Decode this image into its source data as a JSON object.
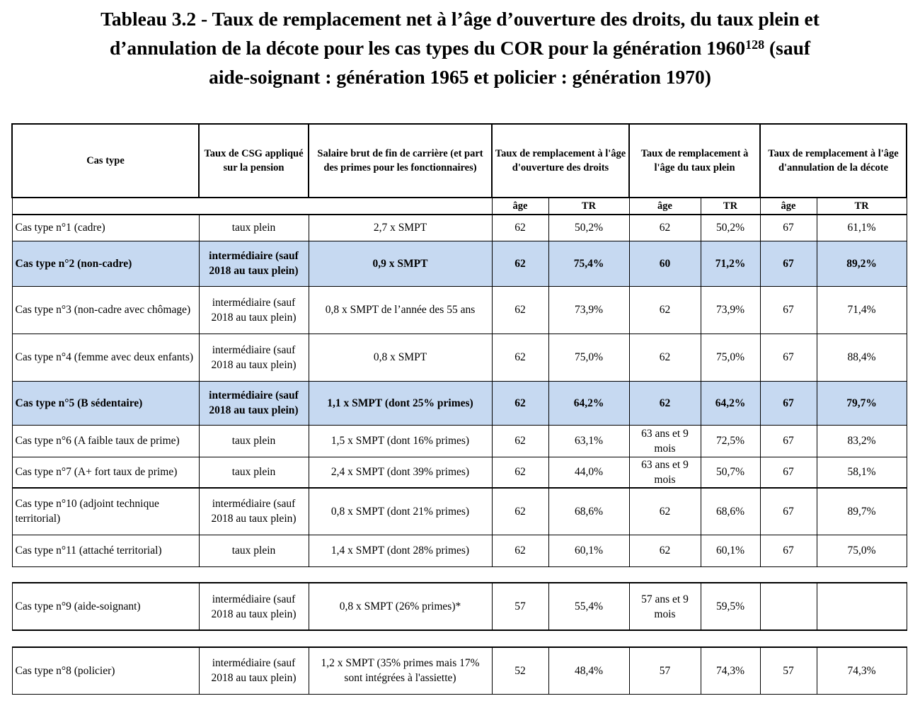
{
  "title": {
    "line1": "Tableau 3.2 - Taux de remplacement net à l’âge d’ouverture des droits, du taux plein et",
    "line2a": "d’annulation de la décote pour les cas types du COR pour la génération 1960",
    "footnote_ref": "128",
    "line2b": " (sauf",
    "line3": "aide-soignant : génération 1965 et policier : génération 1970)"
  },
  "headers": {
    "cas_type": "Cas type",
    "csg": "Taux de CSG appliqué sur la pension",
    "salaire": "Salaire brut de fin de carrière (et part des primes pour les fonctionnaires)",
    "tr_ouverture": "Taux de remplacement à l'âge d'ouverture des droits",
    "tr_taux_plein": "Taux de remplacement à l'âge du taux plein",
    "tr_annulation": "Taux de remplacement à l'âge d'annulation de la décote",
    "age": "âge",
    "tr": "TR"
  },
  "rows": [
    {
      "cas": "Cas type n°1 (cadre)",
      "csg": "taux plein",
      "salaire": "2,7 x SMPT",
      "age1": "62",
      "tr1": "50,2%",
      "age2": "62",
      "tr2": "50,2%",
      "age3": "67",
      "tr3": "61,1%"
    },
    {
      "cas": "Cas type n°2 (non-cadre)",
      "csg": "intermédiaire (sauf 2018 au taux plein)",
      "salaire": "0,9 x SMPT",
      "age1": "62",
      "tr1": "75,4%",
      "age2": "60",
      "tr2": "71,2%",
      "age3": "67",
      "tr3": "89,2%"
    },
    {
      "cas": "Cas type n°3 (non-cadre avec chômage)",
      "csg": "intermédiaire (sauf 2018 au taux plein)",
      "salaire": "0,8 x SMPT de l’année des 55 ans",
      "age1": "62",
      "tr1": "73,9%",
      "age2": "62",
      "tr2": "73,9%",
      "age3": "67",
      "tr3": "71,4%"
    },
    {
      "cas": "Cas type n°4 (femme avec deux enfants)",
      "csg": "intermédiaire (sauf 2018 au taux plein)",
      "salaire": "0,8 x SMPT",
      "age1": "62",
      "tr1": "75,0%",
      "age2": "62",
      "tr2": "75,0%",
      "age3": "67",
      "tr3": "88,4%"
    },
    {
      "cas": "Cas type n°5 (B sédentaire)",
      "csg": "intermédiaire (sauf 2018 au taux plein)",
      "salaire": "1,1 x SMPT (dont 25% primes)",
      "age1": "62",
      "tr1": "64,2%",
      "age2": "62",
      "tr2": "64,2%",
      "age3": "67",
      "tr3": "79,7%"
    },
    {
      "cas": "Cas type n°6 (A faible taux de prime)",
      "csg": "taux plein",
      "salaire": "1,5 x SMPT (dont 16% primes)",
      "age1": "62",
      "tr1": "63,1%",
      "age2": "63 ans et 9 mois",
      "tr2": "72,5%",
      "age3": "67",
      "tr3": "83,2%"
    },
    {
      "cas": "Cas type n°7 (A+ fort taux de prime)",
      "csg": "taux plein",
      "salaire": "2,4 x SMPT (dont 39% primes)",
      "age1": "62",
      "tr1": "44,0%",
      "age2": "63 ans et 9 mois",
      "tr2": "50,7%",
      "age3": "67",
      "tr3": "58,1%"
    },
    {
      "cas": "Cas type n°10 (adjoint technique territorial)",
      "csg": "intermédiaire (sauf 2018 au taux plein)",
      "salaire": "0,8 x SMPT (dont 21% primes)",
      "age1": "62",
      "tr1": "68,6%",
      "age2": "62",
      "tr2": "68,6%",
      "age3": "67",
      "tr3": "89,7%"
    },
    {
      "cas": "Cas type n°11 (attaché territorial)",
      "csg": "taux plein",
      "salaire": "1,4 x SMPT (dont 28% primes)",
      "age1": "62",
      "tr1": "60,1%",
      "age2": "62",
      "tr2": "60,1%",
      "age3": "67",
      "tr3": "75,0%"
    },
    {
      "cas": "Cas type n°9 (aide-soignant)",
      "csg": "intermédiaire (sauf 2018 au taux plein)",
      "salaire": "0,8 x SMPT (26% primes)*",
      "age1": "57",
      "tr1": "55,4%",
      "age2": "57 ans et 9 mois",
      "tr2": "59,5%",
      "age3": "",
      "tr3": ""
    },
    {
      "cas": "Cas type n°8 (policier)",
      "csg": "intermédiaire (sauf 2018 au taux plein)",
      "salaire": "1,2 x SMPT (35% primes mais 17% sont intégrées à l'assiette)",
      "age1": "52",
      "tr1": "48,4%",
      "age2": "57",
      "tr2": "74,3%",
      "age3": "57",
      "tr3": "74,3%"
    }
  ],
  "colors": {
    "highlight": "#c6d9f1"
  }
}
